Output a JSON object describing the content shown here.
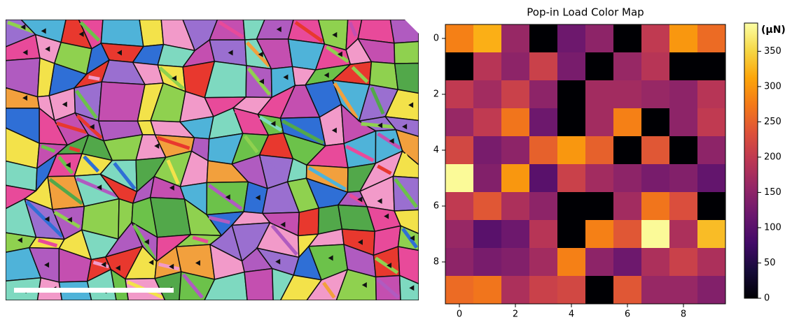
{
  "chart_data": {
    "type": "heatmap",
    "title": "Pop-in Load Color Map",
    "colorbar_label": "(μN)",
    "colormap": "inferno",
    "values": [
      [
        280,
        320,
        160,
        0,
        120,
        150,
        0,
        200,
        300,
        260
      ],
      [
        0,
        190,
        150,
        210,
        130,
        0,
        160,
        190,
        0,
        0
      ],
      [
        200,
        170,
        210,
        150,
        0,
        170,
        170,
        160,
        150,
        190
      ],
      [
        160,
        200,
        270,
        120,
        0,
        170,
        280,
        0,
        150,
        200
      ],
      [
        220,
        130,
        150,
        250,
        300,
        250,
        0,
        240,
        0,
        150
      ],
      [
        385,
        140,
        300,
        100,
        210,
        170,
        150,
        130,
        140,
        110
      ],
      [
        200,
        240,
        180,
        150,
        0,
        0,
        170,
        270,
        230,
        0
      ],
      [
        160,
        100,
        120,
        190,
        0,
        280,
        240,
        385,
        180,
        330
      ],
      [
        150,
        130,
        140,
        170,
        280,
        150,
        120,
        180,
        210,
        180
      ],
      [
        260,
        270,
        180,
        210,
        220,
        0,
        240,
        160,
        160,
        140
      ]
    ],
    "xlim": [
      -0.5,
      9.5
    ],
    "ylim": [
      9.5,
      -0.5
    ],
    "xticks": [
      0,
      2,
      4,
      6,
      8
    ],
    "yticks": [
      0,
      2,
      4,
      6,
      8
    ],
    "clim": [
      0,
      390
    ],
    "cticks": [
      0,
      50,
      100,
      150,
      200,
      250,
      300,
      350
    ]
  }
}
